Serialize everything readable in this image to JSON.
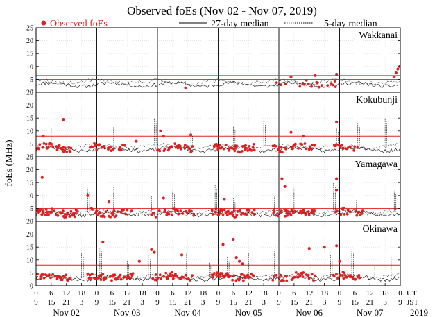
{
  "chart_data": {
    "type": "scatter",
    "title": "Observed foEs (Nov 02 - Nov 07, 2019)",
    "ylabel": "foEs (MHz)",
    "ylim": [
      0,
      25
    ],
    "yticks": [
      0,
      5,
      10,
      15,
      20,
      25
    ],
    "xlim_days": [
      0,
      6
    ],
    "x_ut_ticks": [
      "0",
      "6",
      "12",
      "18",
      "0",
      "6",
      "12",
      "18",
      "0",
      "6",
      "12",
      "18",
      "0",
      "6",
      "12",
      "18",
      "0",
      "6",
      "12",
      "18",
      "0",
      "6",
      "12",
      "18",
      "0"
    ],
    "x_jst_ticks": [
      "9",
      "15",
      "21",
      "3",
      "9",
      "15",
      "21",
      "3",
      "9",
      "15",
      "21",
      "3",
      "9",
      "15",
      "21",
      "3",
      "9",
      "15",
      "21",
      "3",
      "9",
      "15",
      "21",
      "3",
      "9"
    ],
    "ut_label": "UT",
    "jst_label": "JST",
    "date_labels": [
      "Nov 02",
      "Nov 03",
      "Nov 04",
      "Nov 05",
      "Nov 06",
      "Nov 07"
    ],
    "year_label": "2019",
    "legend": {
      "observed": "Observed foEs",
      "median27": "27-day median",
      "median5": "5-day median"
    },
    "colors": {
      "observed": "#e02020",
      "line": "#000000",
      "redline": "#e02020"
    },
    "panels": [
      {
        "station": "Wakkanai",
        "red_levels": [
          6.5,
          5.0
        ],
        "median27_base": 3.0,
        "median5_base": 4.0,
        "obs_base": 3.0,
        "obs_prob": 0.25,
        "seed": 11,
        "spike_days": [],
        "segments": [
          [
            2.45,
            2.55
          ],
          [
            3.95,
            4.95
          ]
        ],
        "highlights": [
          [
            5.9,
            6.0
          ],
          [
            5.93,
            7.5
          ],
          [
            5.96,
            9.0
          ],
          [
            5.99,
            10.0
          ],
          [
            4.95,
            7.0
          ],
          [
            4.6,
            6.5
          ],
          [
            4.2,
            6.0
          ]
        ]
      },
      {
        "station": "Kokubunji",
        "red_levels": [
          8.0,
          5.0
        ],
        "median27_base": 3.0,
        "median5_base": 4.0,
        "obs_base": 3.5,
        "obs_prob": 0.55,
        "seed": 23,
        "spike_days": [
          0.25,
          1.25,
          1.95,
          2.55,
          3.25,
          3.75,
          4.35,
          4.95,
          5.3,
          5.75
        ],
        "segments": [
          [
            0.0,
            0.6
          ],
          [
            0.9,
            1.5
          ],
          [
            2.0,
            2.6
          ],
          [
            2.9,
            3.6
          ],
          [
            3.9,
            4.6
          ],
          [
            4.9,
            5.3
          ]
        ],
        "highlights": [
          [
            0.45,
            14.5
          ],
          [
            0.12,
            8.0
          ],
          [
            2.05,
            10.0
          ],
          [
            2.1,
            8.0
          ],
          [
            4.2,
            9.5
          ],
          [
            4.4,
            8.0
          ],
          [
            4.95,
            13.5
          ],
          [
            2.55,
            8.5
          ],
          [
            1.65,
            6.0
          ]
        ]
      },
      {
        "station": "Yamagawa",
        "red_levels": [
          5.0
        ],
        "median27_base": 3.0,
        "median5_base": 3.5,
        "obs_base": 3.3,
        "obs_prob": 0.6,
        "seed": 37,
        "spike_days": [
          0.1,
          0.85,
          1.25,
          1.9,
          2.25,
          2.95,
          3.25,
          3.9,
          4.25,
          4.9,
          5.25,
          5.9
        ],
        "segments": [
          [
            0.0,
            0.7
          ],
          [
            0.9,
            1.6
          ],
          [
            1.9,
            2.6
          ],
          [
            2.9,
            3.6
          ],
          [
            3.9,
            4.6
          ],
          [
            4.9,
            5.4
          ]
        ],
        "highlights": [
          [
            0.1,
            17.0
          ],
          [
            4.05,
            16.5
          ],
          [
            4.95,
            16.5
          ],
          [
            0.85,
            10.0
          ],
          [
            4.1,
            13.5
          ],
          [
            4.95,
            12.0
          ],
          [
            2.1,
            9.0
          ],
          [
            3.1,
            8.5
          ],
          [
            1.2,
            7.5
          ]
        ]
      },
      {
        "station": "Okinawa",
        "red_levels": [
          8.0,
          5.0
        ],
        "median27_base": 3.0,
        "median5_base": 3.5,
        "obs_base": 3.5,
        "obs_prob": 0.55,
        "seed": 53,
        "spike_days": [
          0.75,
          1.05,
          1.5,
          1.85,
          2.45,
          2.85,
          3.15,
          3.5,
          3.9,
          4.5,
          4.85,
          5.2,
          5.55,
          5.85
        ],
        "segments": [
          [
            0.0,
            0.6
          ],
          [
            0.85,
            1.6
          ],
          [
            1.9,
            2.6
          ],
          [
            2.9,
            3.6
          ],
          [
            3.9,
            4.6
          ],
          [
            4.9,
            5.35
          ]
        ],
        "highlights": [
          [
            1.1,
            17.0
          ],
          [
            1.7,
            9.5
          ],
          [
            1.9,
            14.0
          ],
          [
            1.95,
            13.0
          ],
          [
            2.4,
            12.0
          ],
          [
            3.08,
            16.0
          ],
          [
            3.25,
            18.0
          ],
          [
            3.3,
            11.0
          ],
          [
            3.35,
            9.5
          ],
          [
            4.5,
            14.5
          ],
          [
            4.75,
            15.0
          ],
          [
            4.95,
            15.5
          ],
          [
            5.0,
            9.5
          ],
          [
            3.4,
            8.5
          ]
        ]
      }
    ]
  }
}
